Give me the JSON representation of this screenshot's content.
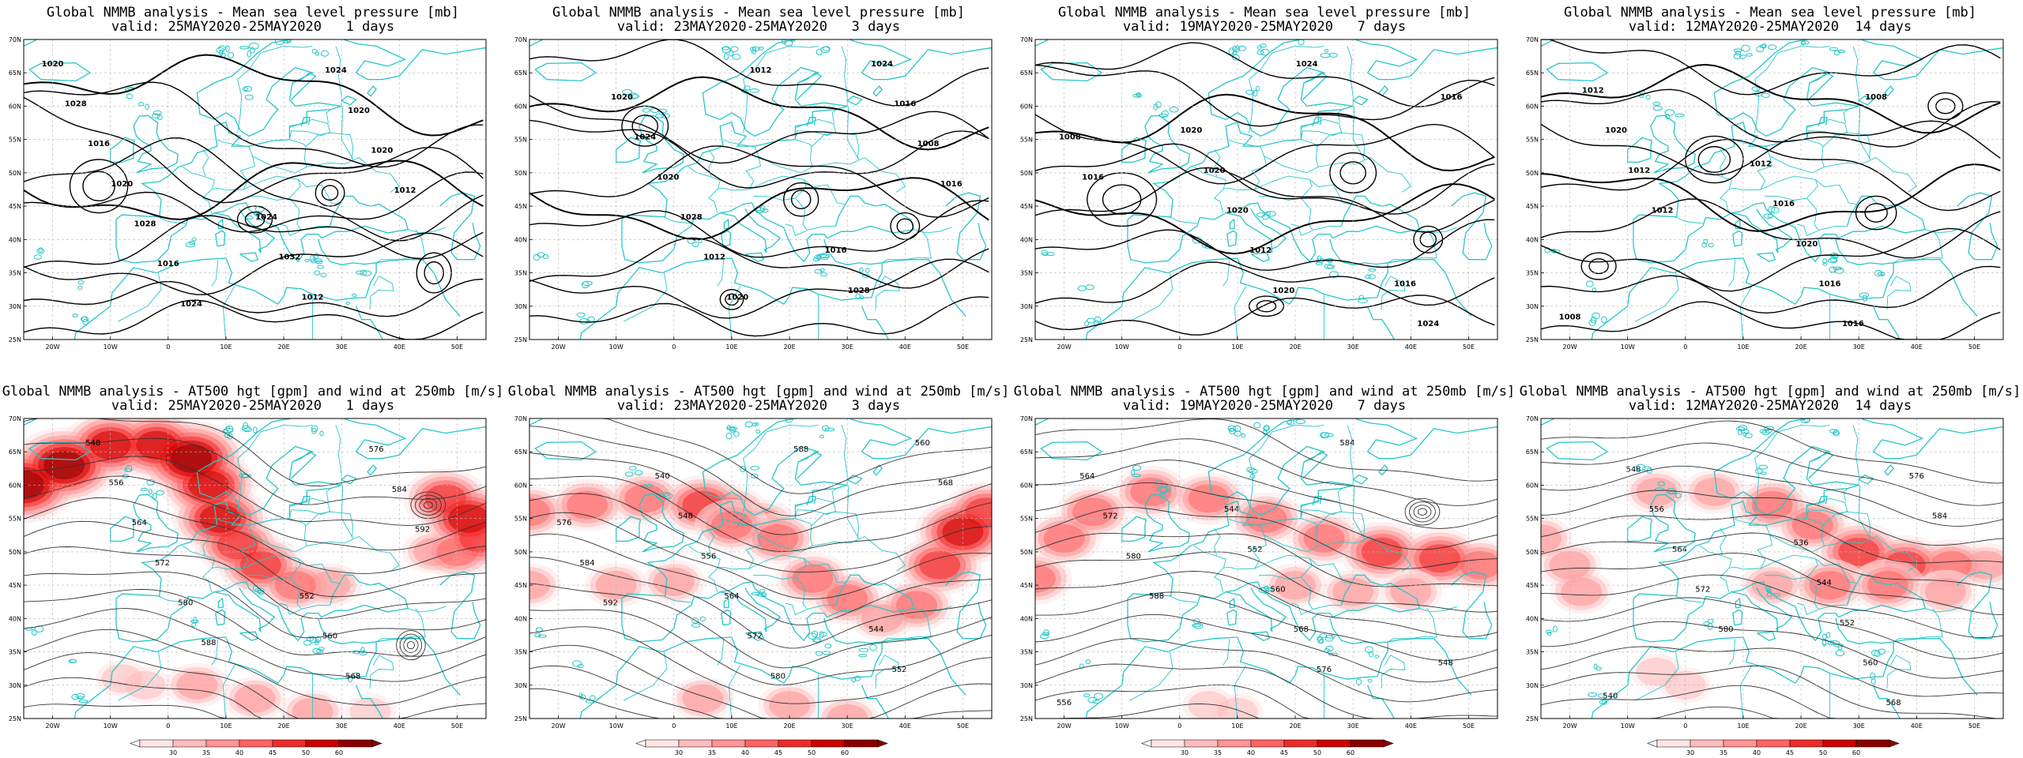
{
  "page_title": "Global NMMB analysis panels",
  "rows": [
    {
      "product": "slp",
      "title_line1": "Global NMMB analysis - Mean sea level pressure [mb]",
      "panels": [
        {
          "valid": "valid: 25MAY2020-25MAY2020   1 days",
          "contour_labels": [
            "1020",
            "1024",
            "1028",
            "1032",
            "1016",
            "1012",
            "1020",
            "1024",
            "1028",
            "1020",
            "1016",
            "1020",
            "1024",
            "1012"
          ]
        },
        {
          "valid": "valid: 23MAY2020-25MAY2020   3 days",
          "contour_labels": [
            "1020",
            "1016",
            "1024",
            "1028",
            "1020",
            "1024",
            "1028",
            "1016",
            "1012",
            "1008",
            "1020",
            "1016",
            "1012"
          ]
        },
        {
          "valid": "valid: 19MAY2020-25MAY2020   7 days",
          "contour_labels": [
            "1020",
            "1016",
            "1020",
            "1024",
            "1020",
            "1016",
            "1012",
            "1008",
            "1020",
            "1016",
            "1024"
          ]
        },
        {
          "valid": "valid: 12MAY2020-25MAY2020  14 days",
          "contour_labels": [
            "1012",
            "1008",
            "1016",
            "1012",
            "1020",
            "1020",
            "1016",
            "1012",
            "1016",
            "1012",
            "1008"
          ]
        }
      ]
    },
    {
      "product": "z500",
      "title_line1": "Global NMMB analysis - AT500 hgt [gpm] and wind at 250mb [m/s]",
      "panels": [
        {
          "valid": "valid: 25MAY2020-25MAY2020   1 days",
          "contour_labels": [
            "548",
            "552",
            "556",
            "560",
            "564",
            "568",
            "572",
            "576",
            "580",
            "584",
            "588",
            "592"
          ]
        },
        {
          "valid": "valid: 23MAY2020-25MAY2020   3 days",
          "contour_labels": [
            "540",
            "544",
            "548",
            "552",
            "556",
            "560",
            "564",
            "568",
            "572",
            "576",
            "580",
            "584",
            "588",
            "592"
          ]
        },
        {
          "valid": "valid: 19MAY2020-25MAY2020   7 days",
          "contour_labels": [
            "544",
            "548",
            "552",
            "556",
            "560",
            "564",
            "568",
            "572",
            "576",
            "580",
            "584",
            "588"
          ]
        },
        {
          "valid": "valid: 12MAY2020-25MAY2020  14 days",
          "contour_labels": [
            "536",
            "540",
            "544",
            "548",
            "552",
            "556",
            "560",
            "564",
            "568",
            "572",
            "576",
            "580",
            "584"
          ]
        }
      ]
    }
  ],
  "axes": {
    "lat_labels": [
      "70N",
      "65N",
      "60N",
      "55N",
      "50N",
      "45N",
      "40N",
      "35N",
      "30N",
      "25N"
    ],
    "lon_labels": [
      "20W",
      "10W",
      "0",
      "10E",
      "20E",
      "30E",
      "40E",
      "50E"
    ]
  },
  "colorbar": {
    "ticks": [
      "30",
      "35",
      "40",
      "45",
      "50",
      "60"
    ],
    "colors": [
      "#ffe6e6",
      "#ffbcbc",
      "#ff9494",
      "#ff6464",
      "#ee2a2a",
      "#cc0000",
      "#8b0000"
    ]
  },
  "colors": {
    "coastline": "#27c6c8",
    "contour": "#000000",
    "grid": "#b8b8b8"
  }
}
